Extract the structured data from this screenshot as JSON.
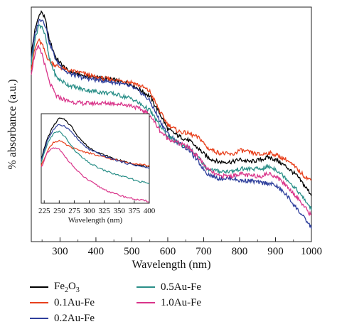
{
  "chart_data": [
    {
      "type": "line",
      "xlabel": "Wavelength (nm)",
      "ylabel": "% absorbance (a.u.)",
      "xlim": [
        220,
        1000
      ],
      "x_ticks": [
        "300",
        "400",
        "500",
        "600",
        "700",
        "800",
        "900",
        "1000"
      ],
      "yticks_shown": false,
      "series": [
        {
          "name": "Fe2O3",
          "color": "#000000",
          "x": [
            220,
            230,
            240,
            250,
            260,
            270,
            290,
            320,
            360,
            400,
            450,
            500,
            530,
            550,
            580,
            600,
            630,
            660,
            690,
            710,
            740,
            780,
            800,
            830,
            860,
            880,
            900,
            930,
            960,
            980,
            1000
          ],
          "y": [
            0.8,
            0.9,
            0.96,
            0.98,
            0.94,
            0.86,
            0.78,
            0.73,
            0.71,
            0.7,
            0.69,
            0.67,
            0.64,
            0.62,
            0.54,
            0.48,
            0.45,
            0.43,
            0.39,
            0.36,
            0.34,
            0.34,
            0.35,
            0.34,
            0.35,
            0.36,
            0.35,
            0.32,
            0.28,
            0.24,
            0.2
          ]
        },
        {
          "name": "0.1Au-Fe",
          "color": "#e8401c",
          "x": [
            220,
            230,
            240,
            250,
            260,
            270,
            290,
            320,
            360,
            400,
            450,
            500,
            530,
            550,
            580,
            600,
            630,
            660,
            690,
            710,
            740,
            780,
            800,
            830,
            860,
            880,
            900,
            930,
            960,
            980,
            1000
          ],
          "y": [
            0.74,
            0.82,
            0.86,
            0.84,
            0.8,
            0.77,
            0.75,
            0.73,
            0.72,
            0.7,
            0.69,
            0.68,
            0.66,
            0.64,
            0.55,
            0.5,
            0.47,
            0.46,
            0.44,
            0.4,
            0.38,
            0.37,
            0.39,
            0.38,
            0.37,
            0.38,
            0.37,
            0.35,
            0.31,
            0.28,
            0.26
          ]
        },
        {
          "name": "0.2Au-Fe",
          "color": "#2e3f9c",
          "x": [
            220,
            230,
            240,
            250,
            260,
            270,
            290,
            320,
            360,
            400,
            450,
            500,
            530,
            550,
            580,
            600,
            630,
            660,
            690,
            710,
            740,
            780,
            800,
            830,
            860,
            880,
            900,
            930,
            960,
            980,
            1000
          ],
          "y": [
            0.78,
            0.88,
            0.94,
            0.95,
            0.92,
            0.85,
            0.77,
            0.72,
            0.7,
            0.69,
            0.68,
            0.66,
            0.63,
            0.6,
            0.51,
            0.46,
            0.42,
            0.39,
            0.33,
            0.29,
            0.27,
            0.27,
            0.26,
            0.26,
            0.25,
            0.25,
            0.24,
            0.2,
            0.14,
            0.1,
            0.06
          ]
        },
        {
          "name": "0.5Au-Fe",
          "color": "#2a8f88",
          "x": [
            220,
            230,
            240,
            250,
            260,
            270,
            290,
            320,
            360,
            400,
            450,
            500,
            530,
            550,
            580,
            600,
            630,
            660,
            690,
            710,
            740,
            780,
            800,
            830,
            860,
            880,
            900,
            930,
            960,
            980,
            1000
          ],
          "y": [
            0.76,
            0.86,
            0.92,
            0.92,
            0.87,
            0.78,
            0.7,
            0.67,
            0.65,
            0.64,
            0.63,
            0.61,
            0.58,
            0.56,
            0.49,
            0.45,
            0.42,
            0.4,
            0.35,
            0.31,
            0.3,
            0.3,
            0.31,
            0.31,
            0.31,
            0.32,
            0.31,
            0.27,
            0.22,
            0.18,
            0.14
          ]
        },
        {
          "name": "1.0Au-Fe",
          "color": "#d9348a",
          "x": [
            220,
            230,
            240,
            250,
            260,
            270,
            290,
            320,
            360,
            400,
            450,
            500,
            530,
            550,
            580,
            600,
            630,
            660,
            690,
            710,
            740,
            780,
            800,
            830,
            860,
            880,
            900,
            930,
            960,
            980,
            1000
          ],
          "y": [
            0.72,
            0.8,
            0.83,
            0.8,
            0.74,
            0.68,
            0.62,
            0.6,
            0.59,
            0.59,
            0.59,
            0.58,
            0.56,
            0.54,
            0.47,
            0.44,
            0.42,
            0.4,
            0.35,
            0.31,
            0.28,
            0.28,
            0.29,
            0.28,
            0.28,
            0.29,
            0.28,
            0.24,
            0.19,
            0.15,
            0.11
          ]
        }
      ],
      "legend": {
        "placement": "bottom",
        "entries": [
          "Fe2O3",
          "0.1Au-Fe",
          "0.2Au-Fe",
          "0.5Au-Fe",
          "1.0Au-Fe"
        ]
      }
    },
    {
      "type": "line",
      "role": "inset",
      "xlabel": "Wavelength (nm)",
      "xlim": [
        220,
        400
      ],
      "x_ticks": [
        "225",
        "250",
        "275",
        "300",
        "325",
        "350",
        "375",
        "400"
      ],
      "series": [
        {
          "name": "Fe2O3",
          "color": "#000000",
          "x": [
            220,
            230,
            240,
            250,
            260,
            270,
            280,
            290,
            300,
            320,
            340,
            360,
            380,
            400
          ],
          "y": [
            0.5,
            0.72,
            0.86,
            0.95,
            0.93,
            0.86,
            0.76,
            0.68,
            0.62,
            0.55,
            0.5,
            0.46,
            0.43,
            0.4
          ]
        },
        {
          "name": "0.1Au-Fe",
          "color": "#e8401c",
          "x": [
            220,
            230,
            240,
            250,
            260,
            270,
            280,
            290,
            300,
            320,
            340,
            360,
            380,
            400
          ],
          "y": [
            0.42,
            0.58,
            0.68,
            0.7,
            0.66,
            0.62,
            0.6,
            0.58,
            0.56,
            0.52,
            0.49,
            0.46,
            0.44,
            0.42
          ]
        },
        {
          "name": "0.2Au-Fe",
          "color": "#2e3f9c",
          "x": [
            220,
            230,
            240,
            250,
            260,
            270,
            280,
            290,
            300,
            320,
            340,
            360,
            380,
            400
          ],
          "y": [
            0.48,
            0.7,
            0.82,
            0.88,
            0.86,
            0.8,
            0.72,
            0.65,
            0.6,
            0.54,
            0.49,
            0.45,
            0.42,
            0.39
          ]
        },
        {
          "name": "0.5Au-Fe",
          "color": "#2a8f88",
          "x": [
            220,
            230,
            240,
            250,
            260,
            270,
            280,
            290,
            300,
            320,
            340,
            360,
            380,
            400
          ],
          "y": [
            0.45,
            0.66,
            0.78,
            0.8,
            0.74,
            0.64,
            0.56,
            0.5,
            0.45,
            0.38,
            0.33,
            0.29,
            0.25,
            0.22
          ]
        },
        {
          "name": "1.0Au-Fe",
          "color": "#d9348a",
          "x": [
            220,
            230,
            240,
            250,
            260,
            270,
            280,
            290,
            300,
            320,
            340,
            360,
            380,
            400
          ],
          "y": [
            0.4,
            0.56,
            0.62,
            0.6,
            0.52,
            0.44,
            0.36,
            0.3,
            0.25,
            0.17,
            0.11,
            0.07,
            0.04,
            0.02
          ]
        }
      ]
    }
  ],
  "legend_labels": {
    "fe2o3_base": "Fe",
    "fe2o3_sub1": "2",
    "fe2o3_mid": "O",
    "fe2o3_sub2": "3",
    "au01": "0.1Au-Fe",
    "au02": "0.2Au-Fe",
    "au05": "0.5Au-Fe",
    "au10": "1.0Au-Fe"
  }
}
